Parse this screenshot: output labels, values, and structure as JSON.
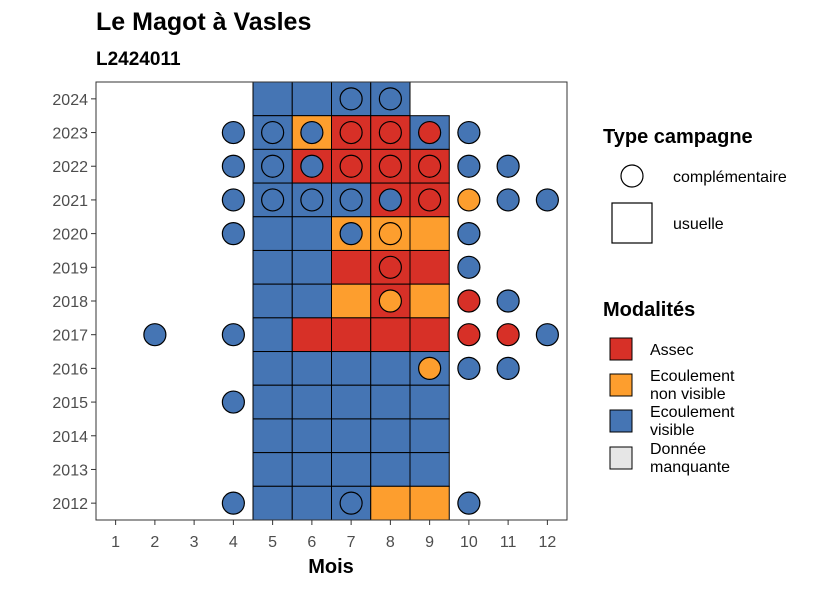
{
  "chart_data": {
    "type": "heatmap",
    "title": "Le Magot à Vasles",
    "subtitle": "L2424011",
    "xlabel": "Mois",
    "ylabel": "",
    "x_ticks": [
      "1",
      "2",
      "3",
      "4",
      "5",
      "6",
      "7",
      "8",
      "9",
      "10",
      "11",
      "12"
    ],
    "y_ticks": [
      "2012",
      "2013",
      "2014",
      "2015",
      "2016",
      "2017",
      "2018",
      "2019",
      "2020",
      "2021",
      "2022",
      "2023",
      "2024"
    ],
    "xlim": [
      0.5,
      12.5
    ],
    "ylim": [
      2011.5,
      2024.5
    ],
    "grid": false,
    "colors": {
      "Assec": "#d73027",
      "Ecoulement non visible": "#fd9e2e",
      "Ecoulement visible": "#4575b4",
      "Donnée manquante": "#e6e6e6"
    },
    "campagne_legend": {
      "title": "Type campagne",
      "items": [
        {
          "key": "complementaire",
          "label": "complémentaire",
          "shape": "circle"
        },
        {
          "key": "usuelle",
          "label": "usuelle",
          "shape": "square"
        }
      ]
    },
    "modalites_legend": {
      "title": "Modalités",
      "items": [
        {
          "key": "A",
          "lines": [
            "Assec"
          ],
          "color": "#d73027"
        },
        {
          "key": "N",
          "lines": [
            "Ecoulement",
            "non visible"
          ],
          "color": "#fd9e2e"
        },
        {
          "key": "V",
          "lines": [
            "Ecoulement",
            "visible"
          ],
          "color": "#4575b4"
        },
        {
          "key": "M",
          "lines": [
            "Donnée",
            "manquante"
          ],
          "color": "#e6e6e6"
        }
      ]
    },
    "usuelle": [
      {
        "year": 2024,
        "cells": {
          "5": "V",
          "6": "V",
          "7": "V",
          "8": "V"
        }
      },
      {
        "year": 2023,
        "cells": {
          "5": "V",
          "6": "N",
          "7": "A",
          "8": "A",
          "9": "V"
        }
      },
      {
        "year": 2022,
        "cells": {
          "5": "V",
          "6": "A",
          "7": "A",
          "8": "A",
          "9": "A"
        }
      },
      {
        "year": 2021,
        "cells": {
          "5": "V",
          "6": "V",
          "7": "V",
          "8": "A",
          "9": "A"
        }
      },
      {
        "year": 2020,
        "cells": {
          "5": "V",
          "6": "V",
          "7": "N",
          "8": "N",
          "9": "N"
        }
      },
      {
        "year": 2019,
        "cells": {
          "5": "V",
          "6": "V",
          "7": "A",
          "8": "A",
          "9": "A"
        }
      },
      {
        "year": 2018,
        "cells": {
          "5": "V",
          "6": "V",
          "7": "N",
          "8": "A",
          "9": "N"
        }
      },
      {
        "year": 2017,
        "cells": {
          "5": "V",
          "6": "A",
          "7": "A",
          "8": "A",
          "9": "A"
        }
      },
      {
        "year": 2016,
        "cells": {
          "5": "V",
          "6": "V",
          "7": "V",
          "8": "V",
          "9": "V"
        }
      },
      {
        "year": 2015,
        "cells": {
          "5": "V",
          "6": "V",
          "7": "V",
          "8": "V",
          "9": "V"
        }
      },
      {
        "year": 2014,
        "cells": {
          "5": "V",
          "6": "V",
          "7": "V",
          "8": "V",
          "9": "V"
        }
      },
      {
        "year": 2013,
        "cells": {
          "5": "V",
          "6": "V",
          "7": "V",
          "8": "V",
          "9": "V"
        }
      },
      {
        "year": 2012,
        "cells": {
          "5": "V",
          "6": "V",
          "7": "V",
          "8": "N",
          "9": "N"
        }
      }
    ],
    "complementaire": [
      {
        "year": 2024,
        "points": {
          "7": "V",
          "8": "V"
        }
      },
      {
        "year": 2023,
        "points": {
          "4": "V",
          "5": "V",
          "6": "V",
          "7": "A",
          "8": "A",
          "9": "A",
          "10": "V"
        }
      },
      {
        "year": 2022,
        "points": {
          "4": "V",
          "5": "V",
          "6": "V",
          "7": "A",
          "8": "A",
          "9": "A",
          "10": "V",
          "11": "V"
        }
      },
      {
        "year": 2021,
        "points": {
          "4": "V",
          "5": "V",
          "6": "V",
          "7": "V",
          "8": "V",
          "9": "A",
          "10": "N",
          "11": "V",
          "12": "V"
        }
      },
      {
        "year": 2020,
        "points": {
          "4": "V",
          "7": "V",
          "8": "N",
          "10": "V"
        }
      },
      {
        "year": 2019,
        "points": {
          "8": "A",
          "10": "V"
        }
      },
      {
        "year": 2018,
        "points": {
          "8": "N",
          "10": "A",
          "11": "V"
        }
      },
      {
        "year": 2017,
        "points": {
          "2": "V",
          "4": "V",
          "10": "A",
          "11": "A",
          "12": "V"
        }
      },
      {
        "year": 2016,
        "points": {
          "9": "N",
          "10": "V",
          "11": "V"
        }
      },
      {
        "year": 2015,
        "points": {
          "4": "V"
        }
      },
      {
        "year": 2012,
        "points": {
          "4": "V",
          "7": "V",
          "10": "V"
        }
      }
    ]
  }
}
